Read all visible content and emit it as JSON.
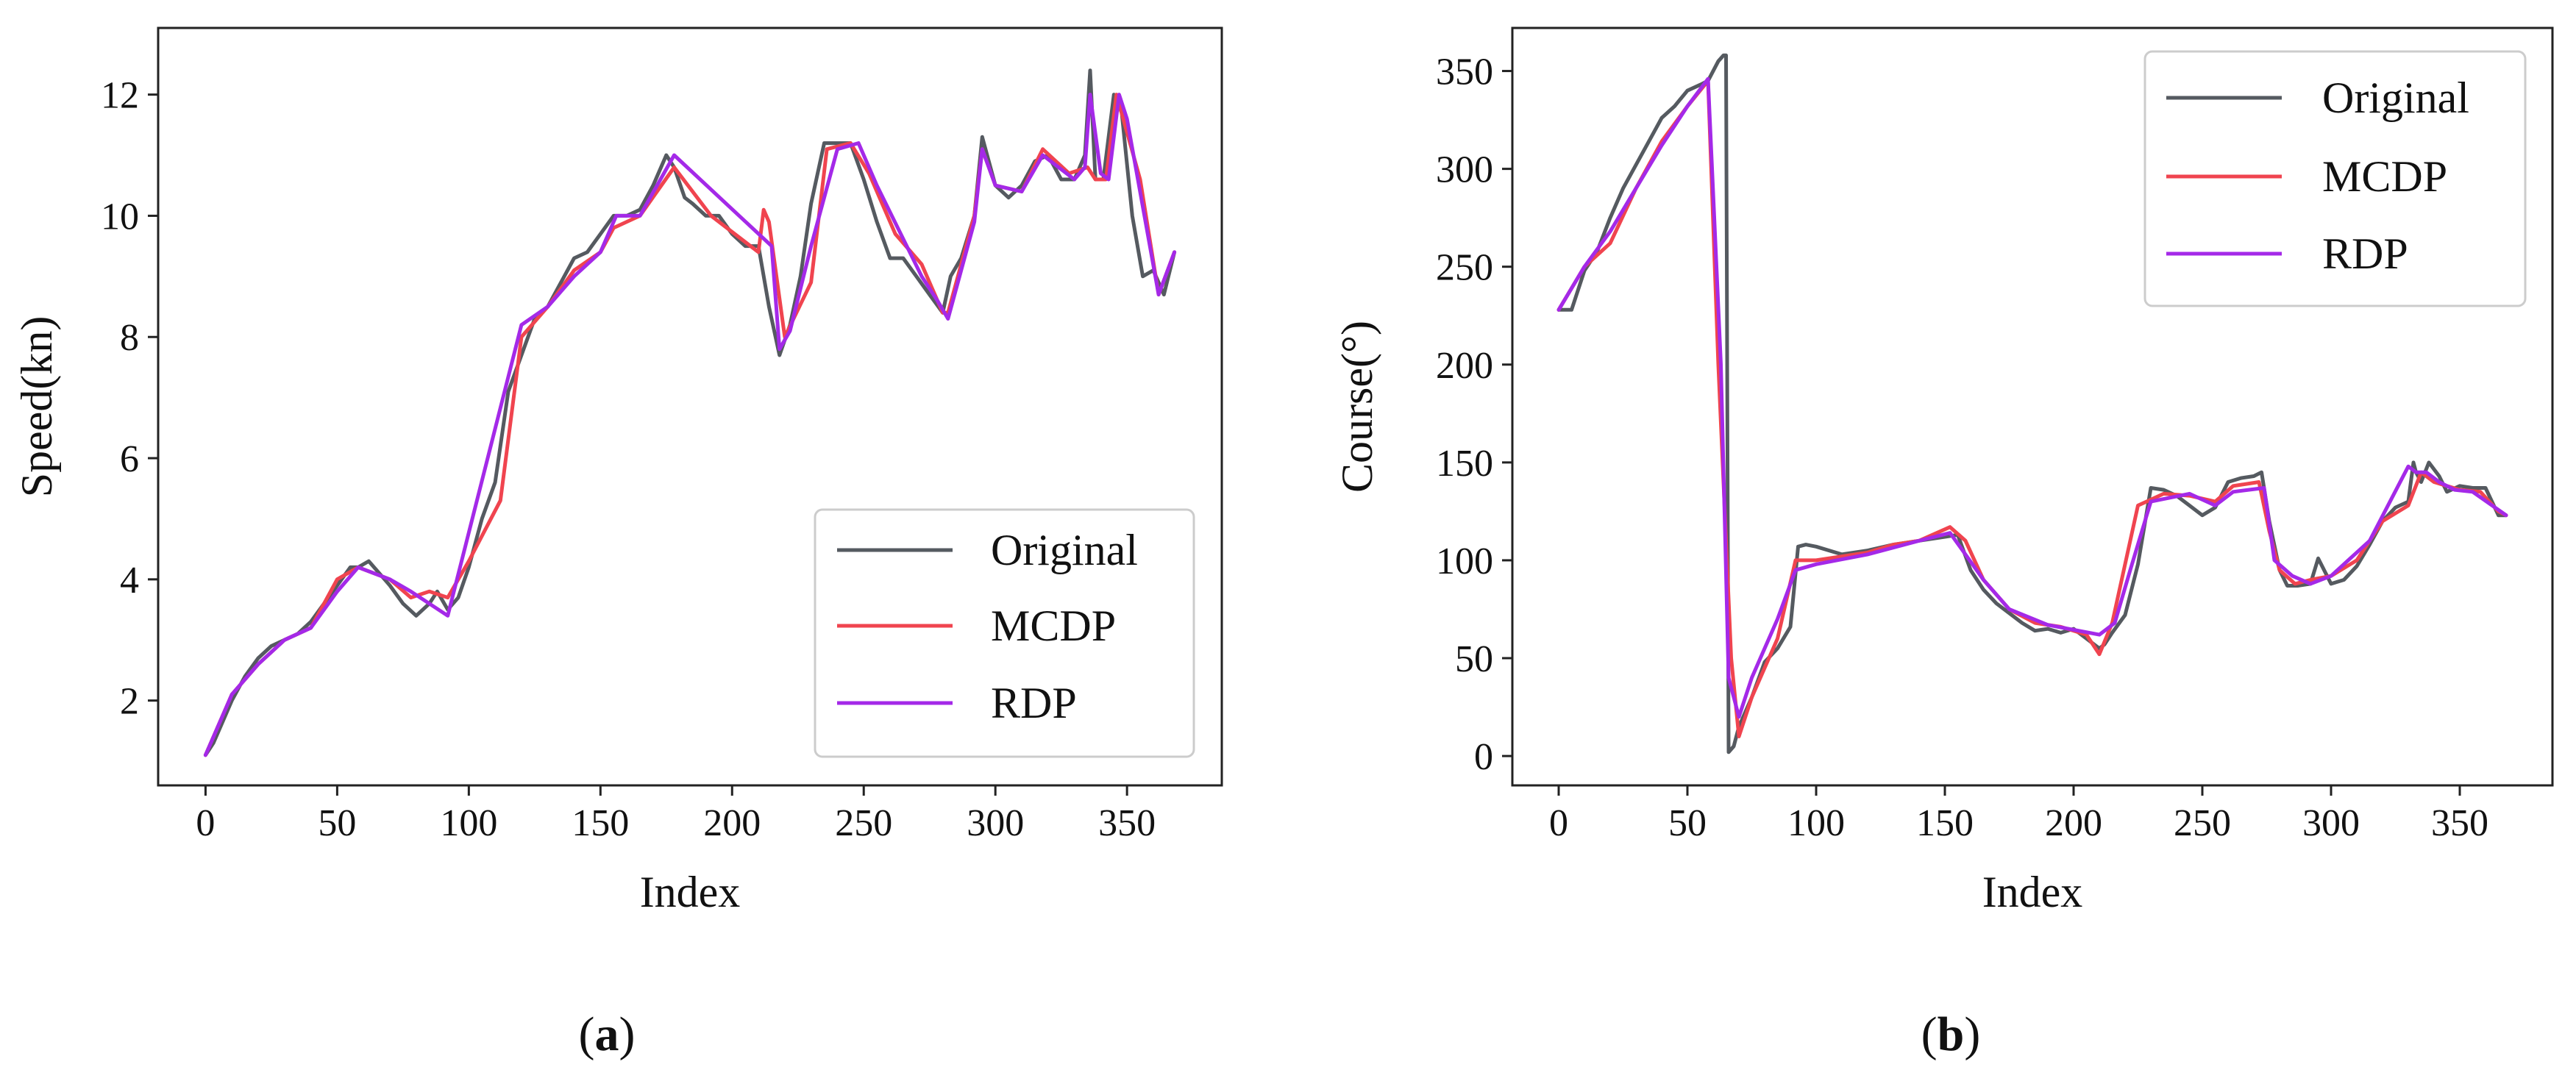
{
  "colors": {
    "Original": "#555a60",
    "MCDP": "#f0444f",
    "RDP": "#a429e8"
  },
  "chart_data": [
    {
      "type": "line",
      "xlabel": "Index",
      "ylabel": "Speed(kn)",
      "xlim": [
        -18,
        386
      ],
      "ylim": [
        0.6,
        13.1
      ],
      "xticks": [
        0,
        50,
        100,
        150,
        200,
        250,
        300,
        350
      ],
      "yticks": [
        2,
        4,
        6,
        8,
        10,
        12
      ],
      "legend_position": "lower-right",
      "caption": {
        "open": "(",
        "letter": "a",
        "close": ")"
      },
      "series": [
        {
          "name": "Original",
          "x": [
            0,
            3,
            6,
            10,
            15,
            20,
            25,
            30,
            35,
            40,
            45,
            50,
            55,
            58,
            62,
            66,
            70,
            75,
            80,
            85,
            88,
            92,
            96,
            100,
            105,
            110,
            115,
            120,
            125,
            130,
            135,
            140,
            145,
            150,
            155,
            160,
            165,
            170,
            175,
            178,
            182,
            185,
            190,
            195,
            200,
            205,
            210,
            214,
            218,
            222,
            226,
            230,
            235,
            240,
            245,
            250,
            255,
            260,
            265,
            270,
            275,
            280,
            283,
            287,
            292,
            295,
            300,
            305,
            310,
            315,
            320,
            325,
            330,
            334,
            336,
            338,
            341,
            345,
            348,
            352,
            356,
            360,
            364,
            368
          ],
          "y": [
            1.1,
            1.3,
            1.6,
            2.0,
            2.4,
            2.7,
            2.9,
            3.0,
            3.1,
            3.3,
            3.6,
            3.9,
            4.2,
            4.2,
            4.3,
            4.1,
            3.9,
            3.6,
            3.4,
            3.6,
            3.8,
            3.5,
            3.7,
            4.2,
            5.0,
            5.6,
            7.1,
            7.7,
            8.3,
            8.5,
            8.9,
            9.3,
            9.4,
            9.7,
            10.0,
            10.0,
            10.1,
            10.5,
            11.0,
            10.8,
            10.3,
            10.2,
            10.0,
            10.0,
            9.7,
            9.5,
            9.5,
            8.5,
            7.7,
            8.2,
            9.0,
            10.2,
            11.2,
            11.2,
            11.2,
            10.6,
            9.9,
            9.3,
            9.3,
            9.0,
            8.7,
            8.4,
            9.0,
            9.3,
            10.0,
            11.3,
            10.5,
            10.3,
            10.5,
            10.9,
            11.0,
            10.6,
            10.6,
            11.0,
            12.4,
            10.6,
            10.6,
            12.0,
            11.7,
            10.0,
            9.0,
            9.1,
            8.7,
            9.4
          ]
        },
        {
          "name": "MCDP",
          "x": [
            0,
            10,
            20,
            30,
            40,
            50,
            58,
            70,
            78,
            85,
            92,
            100,
            112,
            120,
            130,
            140,
            150,
            155,
            165,
            178,
            192,
            210,
            212,
            214,
            220,
            230,
            236,
            245,
            252,
            262,
            272,
            280,
            282,
            292,
            295,
            300,
            310,
            318,
            328,
            335,
            338,
            342,
            346,
            355,
            362,
            368
          ],
          "y": [
            1.1,
            2.1,
            2.6,
            3.0,
            3.2,
            4.0,
            4.2,
            4.0,
            3.7,
            3.8,
            3.7,
            4.3,
            5.3,
            8.0,
            8.5,
            9.1,
            9.4,
            9.8,
            10.0,
            10.8,
            10.0,
            9.4,
            10.1,
            9.9,
            8.0,
            8.9,
            11.1,
            11.2,
            10.7,
            9.7,
            9.2,
            8.4,
            8.4,
            10.0,
            11.1,
            10.5,
            10.4,
            11.1,
            10.7,
            10.8,
            10.6,
            10.6,
            12.0,
            10.6,
            8.7,
            9.4
          ]
        },
        {
          "name": "RDP",
          "x": [
            0,
            10,
            20,
            30,
            40,
            50,
            58,
            70,
            78,
            92,
            120,
            130,
            140,
            150,
            156,
            165,
            178,
            215,
            218,
            222,
            230,
            240,
            248,
            255,
            272,
            278,
            282,
            292,
            295,
            300,
            310,
            318,
            330,
            334,
            336,
            340,
            343,
            347,
            350,
            362,
            368
          ],
          "y": [
            1.1,
            2.1,
            2.6,
            3.0,
            3.2,
            3.8,
            4.2,
            4.0,
            3.8,
            3.4,
            8.2,
            8.5,
            9.0,
            9.4,
            10.0,
            10.0,
            11.0,
            9.5,
            7.8,
            8.1,
            9.5,
            11.1,
            11.2,
            10.5,
            9.0,
            8.6,
            8.3,
            9.9,
            11.1,
            10.5,
            10.4,
            11.0,
            10.6,
            10.8,
            12.0,
            10.7,
            10.6,
            12.0,
            11.6,
            8.7,
            9.4
          ]
        }
      ]
    },
    {
      "type": "line",
      "xlabel": "Index",
      "ylabel": "Course(°)",
      "xlim": [
        -18,
        386
      ],
      "ylim": [
        -15,
        372
      ],
      "xticks": [
        0,
        50,
        100,
        150,
        200,
        250,
        300,
        350
      ],
      "yticks": [
        0,
        50,
        100,
        150,
        200,
        250,
        300,
        350
      ],
      "legend_position": "upper-right",
      "caption": {
        "open": "(",
        "letter": "b",
        "close": ")"
      },
      "series": [
        {
          "name": "Original",
          "x": [
            0,
            5,
            10,
            15,
            20,
            25,
            30,
            35,
            40,
            45,
            50,
            55,
            58,
            60,
            62,
            64,
            65,
            66,
            68,
            70,
            75,
            80,
            85,
            90,
            93,
            96,
            100,
            110,
            120,
            130,
            140,
            150,
            155,
            160,
            165,
            170,
            180,
            185,
            190,
            195,
            200,
            205,
            210,
            212,
            215,
            220,
            225,
            230,
            235,
            240,
            245,
            250,
            255,
            260,
            265,
            270,
            273,
            276,
            280,
            283,
            287,
            292,
            295,
            300,
            305,
            310,
            315,
            320,
            325,
            330,
            332,
            333,
            335,
            338,
            342,
            345,
            350,
            355,
            360,
            365,
            368
          ],
          "y": [
            228,
            228,
            248,
            258,
            275,
            290,
            302,
            314,
            326,
            332,
            340,
            343,
            345,
            350,
            355,
            358,
            358,
            2,
            5,
            15,
            30,
            48,
            55,
            66,
            107,
            108,
            107,
            103,
            105,
            108,
            110,
            112,
            113,
            95,
            85,
            78,
            68,
            64,
            65,
            63,
            65,
            60,
            55,
            57,
            63,
            72,
            98,
            137,
            136,
            133,
            128,
            123,
            127,
            140,
            142,
            143,
            145,
            120,
            95,
            87,
            87,
            88,
            101,
            88,
            90,
            97,
            108,
            120,
            127,
            130,
            150,
            145,
            140,
            150,
            143,
            135,
            138,
            137,
            137,
            123,
            123
          ]
        },
        {
          "name": "MCDP",
          "x": [
            0,
            10,
            20,
            30,
            40,
            50,
            58,
            62,
            67,
            70,
            75,
            80,
            85,
            92,
            100,
            110,
            120,
            130,
            140,
            152,
            158,
            165,
            175,
            185,
            195,
            205,
            210,
            215,
            225,
            235,
            245,
            255,
            262,
            272,
            276,
            280,
            286,
            292,
            300,
            310,
            320,
            330,
            335,
            340,
            345,
            350,
            358,
            365,
            368
          ],
          "y": [
            228,
            250,
            262,
            290,
            314,
            332,
            345,
            200,
            50,
            10,
            30,
            45,
            60,
            100,
            100,
            102,
            104,
            108,
            110,
            117,
            110,
            90,
            75,
            68,
            66,
            62,
            52,
            68,
            128,
            134,
            133,
            130,
            138,
            140,
            115,
            95,
            88,
            90,
            92,
            100,
            120,
            128,
            145,
            140,
            138,
            136,
            135,
            125,
            123
          ]
        },
        {
          "name": "RDP",
          "x": [
            0,
            10,
            20,
            30,
            40,
            50,
            58,
            63,
            66,
            70,
            75,
            85,
            92,
            100,
            120,
            140,
            152,
            158,
            165,
            175,
            190,
            210,
            216,
            222,
            230,
            245,
            255,
            262,
            274,
            278,
            285,
            292,
            300,
            315,
            330,
            333,
            337,
            342,
            348,
            355,
            368
          ],
          "y": [
            228,
            250,
            268,
            290,
            312,
            332,
            346,
            200,
            40,
            20,
            40,
            70,
            95,
            98,
            103,
            110,
            114,
            103,
            90,
            75,
            67,
            62,
            68,
            95,
            130,
            134,
            128,
            135,
            137,
            100,
            92,
            88,
            92,
            110,
            148,
            145,
            145,
            140,
            136,
            135,
            123
          ]
        }
      ]
    }
  ]
}
